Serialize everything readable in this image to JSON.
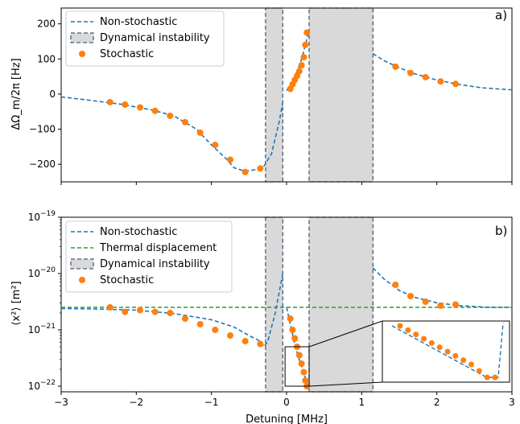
{
  "chart_data": [
    {
      "panel_label": "a)",
      "type": "line",
      "ylabel": "ΔΩ_m/2π [Hz]",
      "ylim": [
        -250,
        245
      ],
      "xlim": [
        -3,
        3
      ],
      "yticks": [
        -200,
        -100,
        0,
        100,
        200
      ],
      "ytick_labels": [
        "−200",
        "−100",
        "0",
        "100",
        "200"
      ],
      "legend_placement": "top-left",
      "legend": [
        "Non-stochastic",
        "Dynamical instability",
        "Stochastic"
      ],
      "series": [
        {
          "name": "Non-stochastic",
          "style": "dashed",
          "color": "#1f77b4",
          "segments": [
            {
              "x": [
                -3.0,
                -2.6,
                -2.2,
                -1.8,
                -1.5,
                -1.2,
                -1.0,
                -0.8,
                -0.7,
                -0.55,
                -0.4,
                -0.3,
                -0.2,
                -0.1,
                -0.05
              ],
              "y": [
                -8,
                -18,
                -29,
                -45,
                -62,
                -100,
                -145,
                -185,
                -210,
                -220,
                -215,
                -205,
                -170,
                -80,
                -25
              ]
            },
            {
              "x": [
                0.0,
                0.05,
                0.1,
                0.15,
                0.2,
                0.25,
                0.3
              ],
              "y": [
                10,
                25,
                45,
                70,
                100,
                140,
                180
              ]
            },
            {
              "x": [
                1.15,
                1.3,
                1.5,
                1.7,
                2.0,
                2.3,
                2.6,
                3.0
              ],
              "y": [
                115,
                95,
                75,
                58,
                40,
                27,
                18,
                12
              ]
            }
          ]
        },
        {
          "name": "Stochastic",
          "style": "markers",
          "color": "#ff7f0e",
          "x": [
            -2.35,
            -2.15,
            -1.95,
            -1.75,
            -1.55,
            -1.35,
            -1.15,
            -0.95,
            -0.75,
            -0.55,
            -0.35,
            0.05,
            0.08,
            0.11,
            0.14,
            0.17,
            0.2,
            0.23,
            0.25,
            0.27,
            1.45,
            1.65,
            1.85,
            2.05,
            2.25
          ],
          "y": [
            -23,
            -30,
            -38,
            -48,
            -62,
            -80,
            -110,
            -145,
            -187,
            -222,
            -212,
            15,
            28,
            40,
            52,
            65,
            82,
            105,
            140,
            175,
            78,
            60,
            48,
            36,
            29
          ]
        }
      ],
      "shaded_regions": [
        {
          "name": "Dynamical instability",
          "x": [
            -0.28,
            -0.05
          ]
        },
        {
          "name": "Dynamical instability",
          "x": [
            0.3,
            1.15
          ]
        }
      ]
    },
    {
      "panel_label": "b)",
      "type": "line",
      "yscale": "log",
      "ylabel": "⟨x²⟩ [m²]",
      "xlabel": "Detuning [MHz]",
      "xlim": [
        -3,
        3
      ],
      "xticks": [
        -3,
        -2,
        -1,
        0,
        1,
        2,
        3
      ],
      "xtick_labels": [
        "−3",
        "−2",
        "−1",
        "0",
        "1",
        "2",
        "3"
      ],
      "ylim_exponent": [
        -22.1,
        -19
      ],
      "yticks_exponent": [
        -22,
        -21,
        -20,
        -19
      ],
      "ytick_base": "10",
      "ytick_exponent_labels": [
        "−22",
        "−21",
        "−20",
        "−19"
      ],
      "legend_placement": "top-left",
      "legend": [
        "Non-stochastic",
        "Thermal displacement",
        "Dynamical instability",
        "Stochastic"
      ],
      "series": [
        {
          "name": "Non-stochastic",
          "style": "dashed",
          "color": "#1f77b4",
          "segments_log10": [
            {
              "x": [
                -3.0,
                -2.5,
                -2.0,
                -1.5,
                -1.0,
                -0.7,
                -0.5,
                -0.35,
                -0.3,
                -0.25,
                -0.15,
                -0.05
              ],
              "y": [
                -20.62,
                -20.63,
                -20.65,
                -20.71,
                -20.82,
                -20.95,
                -21.1,
                -21.2,
                -21.3,
                -21.2,
                -20.7,
                -20.0
              ]
            },
            {
              "x": [
                0.0,
                0.05,
                0.1,
                0.15,
                0.2,
                0.25,
                0.28
              ],
              "y": [
                -20.6,
                -20.9,
                -21.2,
                -21.45,
                -21.65,
                -21.85,
                -22.0
              ]
            },
            {
              "x": [
                1.15,
                1.3,
                1.5,
                1.7,
                2.0,
                2.3,
                2.7,
                3.0
              ],
              "y": [
                -19.9,
                -20.1,
                -20.3,
                -20.42,
                -20.52,
                -20.57,
                -20.6,
                -20.6
              ]
            }
          ]
        },
        {
          "name": "Thermal displacement",
          "style": "dashed",
          "color": "#2ca02c",
          "x": [
            -3,
            3
          ],
          "y_log10": [
            -20.6,
            -20.6
          ]
        },
        {
          "name": "Stochastic",
          "style": "markers",
          "color": "#ff7f0e",
          "x": [
            -2.35,
            -2.15,
            -1.95,
            -1.75,
            -1.55,
            -1.35,
            -1.15,
            -0.95,
            -0.75,
            -0.55,
            -0.35,
            0.05,
            0.08,
            0.11,
            0.14,
            0.17,
            0.2,
            0.23,
            0.25,
            0.27,
            1.45,
            1.65,
            1.85,
            2.05,
            2.25
          ],
          "y_log10": [
            -20.6,
            -20.68,
            -20.65,
            -20.68,
            -20.7,
            -20.8,
            -20.9,
            -21.0,
            -21.1,
            -21.2,
            -21.25,
            -20.8,
            -21.0,
            -21.15,
            -21.3,
            -21.45,
            -21.6,
            -21.75,
            -21.9,
            -22.0,
            -20.2,
            -20.4,
            -20.5,
            -20.57,
            -20.55
          ]
        }
      ],
      "shaded_regions": [
        {
          "name": "Dynamical instability",
          "x": [
            -0.28,
            -0.05
          ]
        },
        {
          "name": "Dynamical instability",
          "x": [
            0.3,
            1.15
          ]
        }
      ],
      "inset": {
        "source_x": [
          -0.02,
          0.3
        ],
        "source_y_log10": [
          -22.0,
          -21.3
        ],
        "marker_y_log10": [
          -20.8,
          -20.9,
          -21.0,
          -21.1,
          -21.2,
          -21.3,
          -21.4,
          -21.5,
          -21.6,
          -21.7,
          -21.85,
          -22.0,
          -22.0
        ],
        "curve_y_log10": [
          -20.8,
          -20.95,
          -21.1,
          -21.25,
          -21.4,
          -21.55,
          -21.7,
          -21.85,
          -22.0,
          -22.0
        ]
      }
    }
  ],
  "colors": {
    "non_stochastic": "#1f77b4",
    "stochastic": "#ff7f0e",
    "thermal": "#2ca02c",
    "instability_fill": "#d9d9d9",
    "instability_edge": "#4a5d75"
  }
}
